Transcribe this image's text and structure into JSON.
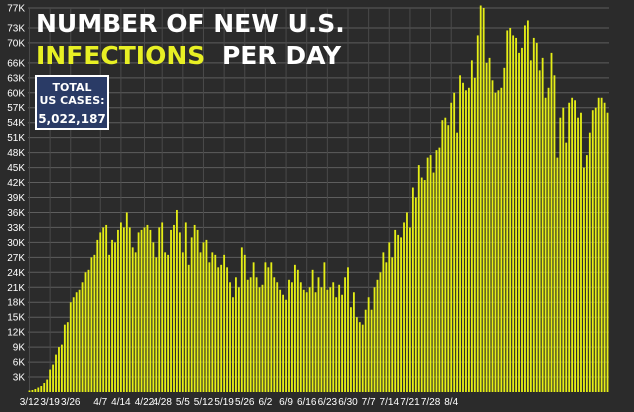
{
  "chart_data": {
    "type": "bar",
    "title_line1": "NUMBER OF NEW U.S.",
    "title_highlight": "INFECTIONS",
    "title_rest": "PER DAY",
    "total_box": {
      "line1": "TOTAL",
      "line2": "US CASES:",
      "value": "5,022,187"
    },
    "ylim": [
      0,
      77000
    ],
    "yticks": [
      "3K",
      "6K",
      "9K",
      "12K",
      "15K",
      "18K",
      "21K",
      "24K",
      "27K",
      "30K",
      "33K",
      "36K",
      "39K",
      "42K",
      "45K",
      "48K",
      "51K",
      "54K",
      "57K",
      "60K",
      "63K",
      "66K",
      "70K",
      "73K",
      "77K"
    ],
    "xtick_labels": [
      "3/12",
      "3/19",
      "3/26",
      "4/7",
      "4/14",
      "4/22",
      "4/28",
      "5/5",
      "5/12",
      "5/19",
      "5/26",
      "6/2",
      "6/9",
      "6/16",
      "6/23",
      "6/30",
      "7/7",
      "7/14",
      "7/21",
      "7/28",
      "8/4"
    ],
    "xtick_index": [
      0,
      7,
      14,
      24,
      31,
      39,
      45,
      52,
      59,
      66,
      73,
      80,
      87,
      94,
      101,
      108,
      115,
      122,
      129,
      136,
      143
    ],
    "values": [
      300,
      400,
      600,
      900,
      1200,
      1800,
      2500,
      4500,
      5500,
      7500,
      9000,
      9500,
      13500,
      14000,
      18000,
      19000,
      20000,
      20500,
      22000,
      24000,
      24500,
      27000,
      27500,
      30500,
      32000,
      33000,
      33500,
      27500,
      30500,
      30000,
      32500,
      34000,
      33000,
      36000,
      33000,
      29000,
      28000,
      32000,
      32500,
      33000,
      33500,
      32500,
      30000,
      27000,
      33000,
      34000,
      28000,
      27500,
      32500,
      33500,
      36500,
      32000,
      28000,
      34000,
      25500,
      31000,
      33500,
      32500,
      28000,
      30000,
      30500,
      26000,
      28000,
      27500,
      25000,
      25500,
      27500,
      25000,
      22000,
      19000,
      23000,
      21000,
      29000,
      27500,
      22500,
      23000,
      26000,
      23000,
      21000,
      21500,
      26000,
      25000,
      26000,
      23000,
      22000,
      20500,
      19500,
      18500,
      22500,
      22000,
      25500,
      24500,
      22000,
      20500,
      20000,
      21000,
      24500,
      20000,
      23000,
      21000,
      26000,
      20500,
      21000,
      22000,
      19000,
      21500,
      19500,
      23000,
      25000,
      17000,
      20000,
      15000,
      14000,
      13500,
      16500,
      19000,
      16500,
      21000,
      22500,
      24000,
      28000,
      26000,
      30000,
      27000,
      32500,
      31500,
      31000,
      34000,
      36000,
      33000,
      41000,
      39000,
      45500,
      43000,
      42500,
      47000,
      47500,
      44000,
      48500,
      49000,
      54500,
      55000,
      53500,
      58000,
      60000,
      52000,
      63500,
      62000,
      60500,
      61000,
      66500,
      63000,
      71500,
      77500,
      77000,
      66000,
      67000,
      62500,
      60000,
      60500,
      61000,
      65000,
      72500,
      73000,
      71500,
      71000,
      68000,
      69000,
      73500,
      74500,
      66500,
      71000,
      70000,
      64500,
      67000,
      59000,
      61000,
      68000,
      63500,
      47000,
      55000,
      57000,
      50000,
      58000,
      59000,
      58500,
      55000,
      56000,
      45000,
      47500,
      52000,
      56500,
      57000,
      59000,
      59000,
      58000,
      56000
    ]
  }
}
